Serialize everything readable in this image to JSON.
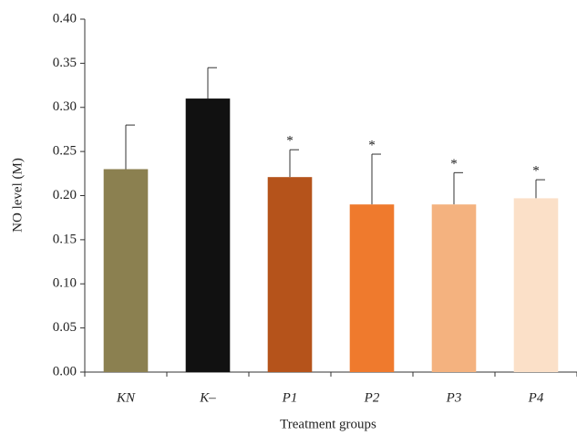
{
  "chart_data": {
    "type": "bar",
    "xlabel": "Treatment groups",
    "ylabel": "NO level (M)",
    "categories": [
      "KN",
      "K–",
      "P1",
      "P2",
      "P3",
      "P4"
    ],
    "values": [
      0.23,
      0.31,
      0.221,
      0.19,
      0.19,
      0.197
    ],
    "errors": [
      0.05,
      0.035,
      0.031,
      0.057,
      0.036,
      0.021
    ],
    "colors": [
      "#8b8050",
      "#111111",
      "#b5531b",
      "#ef7a2d",
      "#f4b27f",
      "#fbe0c8"
    ],
    "annotations": [
      null,
      null,
      "*",
      "*",
      "*",
      "*"
    ],
    "ylim": [
      0,
      0.4
    ],
    "yticks": [
      {
        "value": 0,
        "label": "0.00"
      },
      0.05,
      {
        "value": 0.1,
        "label": "0.10"
      },
      0.15,
      {
        "value": 0.2,
        "label": "0.20"
      },
      0.25,
      {
        "value": 0.3,
        "label": "0.30"
      },
      0.35,
      {
        "value": 0.4,
        "label": "0.40"
      }
    ]
  }
}
